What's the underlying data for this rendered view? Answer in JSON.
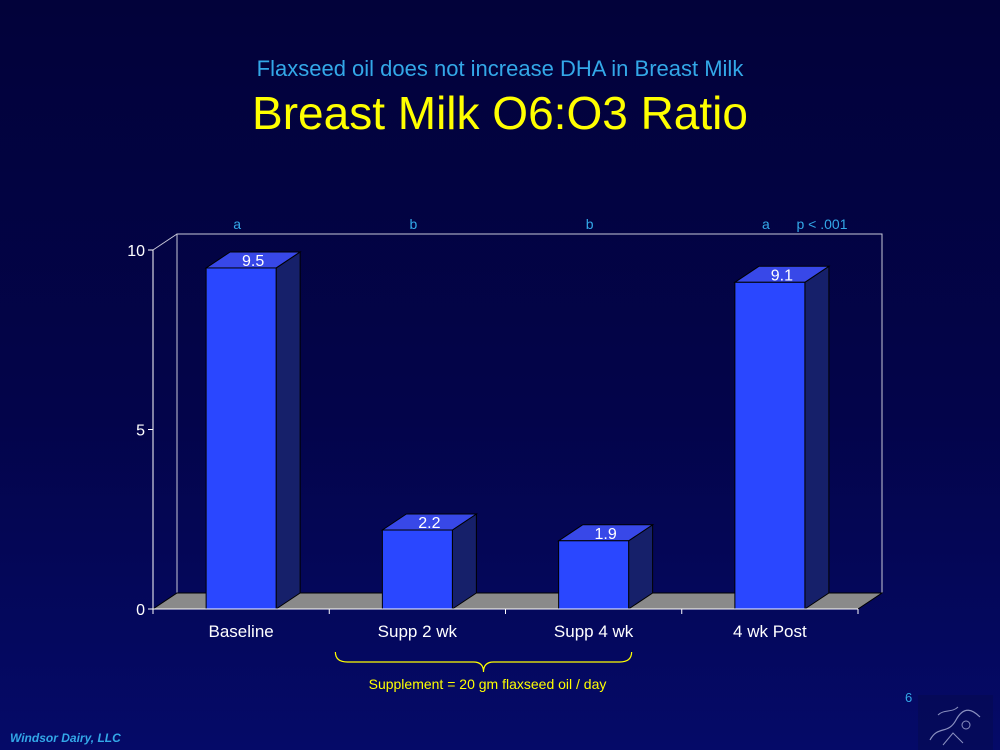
{
  "header": {
    "subtitle": "Flaxseed oil does not increase DHA in Breast Milk",
    "title": "Breast Milk O6:O3 Ratio"
  },
  "footer": {
    "company": "Windsor Dairy, LLC",
    "page_number": "6"
  },
  "chart_data": {
    "type": "bar",
    "categories": [
      "Baseline",
      "Supp 2 wk",
      "Supp 4 wk",
      "4 wk Post"
    ],
    "values": [
      9.5,
      2.2,
      1.9,
      9.1
    ],
    "data_labels": [
      "9.5",
      "2.2",
      "1.9",
      "9.1"
    ],
    "significance_letters": [
      "a",
      "b",
      "b",
      "a"
    ],
    "p_value_label": "p < .001",
    "ylim": [
      0,
      10
    ],
    "yticks": [
      0,
      5,
      10
    ],
    "ytick_labels": [
      "0",
      "5",
      "10"
    ],
    "xlabel": "",
    "ylabel": "",
    "style": "3d",
    "grid": false,
    "bar_color": "#2a47ff",
    "annotation": {
      "text": "Supplement = 20 gm flaxseed oil / day",
      "spans": [
        "Supp 2 wk",
        "Supp 4 wk"
      ],
      "color": "#ffff00"
    }
  }
}
